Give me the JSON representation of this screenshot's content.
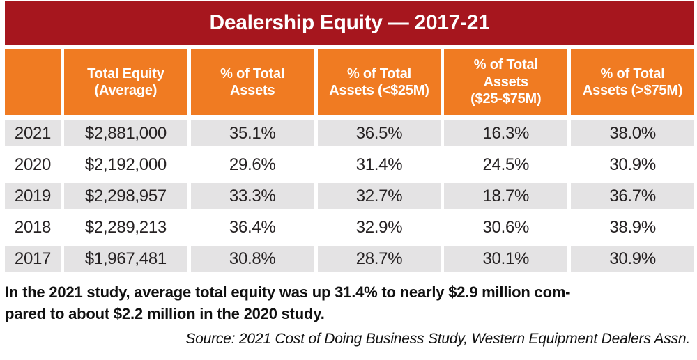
{
  "title": "Dealership Equity — 2017-21",
  "colors": {
    "title_bg": "#A6161E",
    "header_bg": "#F07B22",
    "header_text": "#FFFFFF",
    "row_alt_bg": "#E4E3E4",
    "body_text": "#262223"
  },
  "table": {
    "column_headers": [
      "",
      "Total Equity\n(Average)",
      "% of Total\nAssets",
      "% of Total\nAssets (<$25M)",
      "% of Total\nAssets\n($25-$75M)",
      "% of Total\nAssets (>$75M)"
    ],
    "rows": [
      {
        "year": "2021",
        "total_equity": "$2,881,000",
        "pct_total_assets": "35.1%",
        "pct_under_25m": "36.5%",
        "pct_25_75m": "16.3%",
        "pct_over_75m": "38.0%"
      },
      {
        "year": "2020",
        "total_equity": "$2,192,000",
        "pct_total_assets": "29.6%",
        "pct_under_25m": "31.4%",
        "pct_25_75m": "24.5%",
        "pct_over_75m": "30.9%"
      },
      {
        "year": "2019",
        "total_equity": "$2,298,957",
        "pct_total_assets": "33.3%",
        "pct_under_25m": "32.7%",
        "pct_25_75m": "18.7%",
        "pct_over_75m": "36.7%"
      },
      {
        "year": "2018",
        "total_equity": "$2,289,213",
        "pct_total_assets": "36.4%",
        "pct_under_25m": "32.9%",
        "pct_25_75m": "30.6%",
        "pct_over_75m": "38.9%"
      },
      {
        "year": "2017",
        "total_equity": "$1,967,481",
        "pct_total_assets": "30.8%",
        "pct_under_25m": "28.7%",
        "pct_25_75m": "30.1%",
        "pct_over_75m": "30.9%"
      }
    ]
  },
  "summary": "In the 2021 study, average total equity was up 31.4% to nearly $2.9 million com-\npared to about $2.2 million in the 2020 study.",
  "source": "Source: 2021 Cost of Doing Business Study, Western Equipment Dealers Assn.",
  "chart_data": {
    "type": "table",
    "title": "Dealership Equity — 2017-21",
    "columns": [
      "Year",
      "Total Equity (Average)",
      "% of Total Assets",
      "% of Total Assets (<$25M)",
      "% of Total Assets ($25-$75M)",
      "% of Total Assets (>$75M)"
    ],
    "rows": [
      [
        "2021",
        2881000,
        35.1,
        36.5,
        16.3,
        38.0
      ],
      [
        "2020",
        2192000,
        29.6,
        31.4,
        24.5,
        30.9
      ],
      [
        "2019",
        2298957,
        33.3,
        32.7,
        18.7,
        36.7
      ],
      [
        "2018",
        2289213,
        36.4,
        32.9,
        30.6,
        38.9
      ],
      [
        "2017",
        1967481,
        30.8,
        28.7,
        30.1,
        30.9
      ]
    ]
  }
}
